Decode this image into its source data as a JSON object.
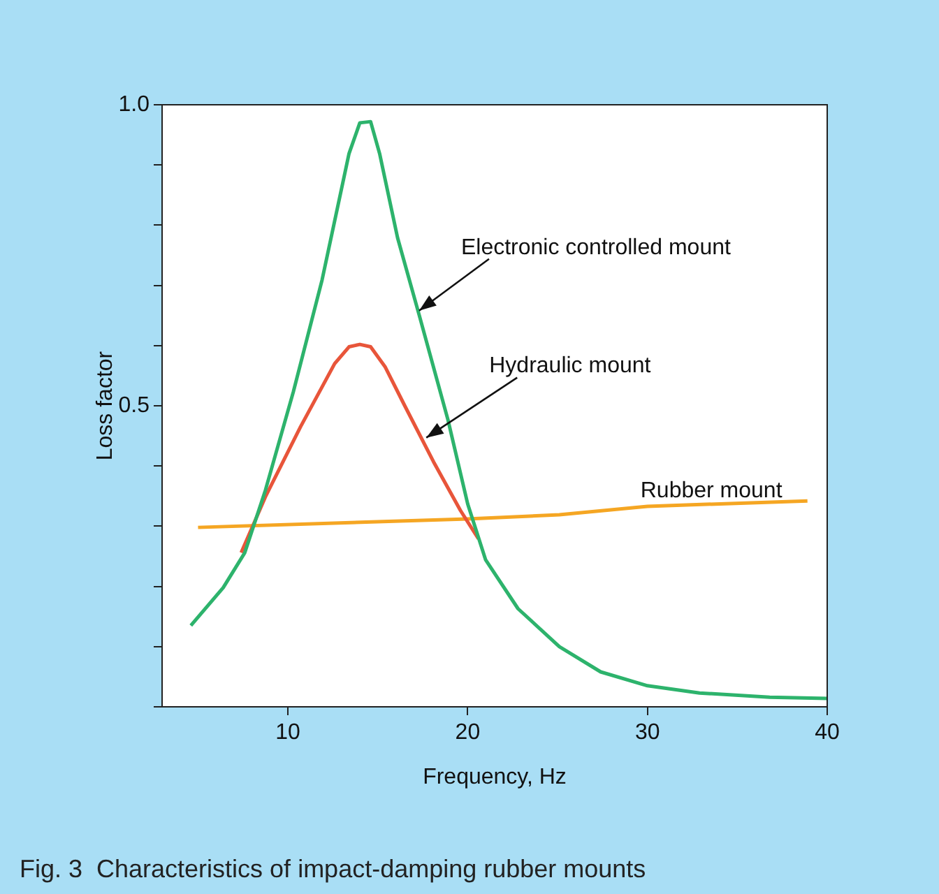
{
  "chart_data": {
    "type": "line",
    "xlabel": "Frequency, Hz",
    "ylabel": "Loss factor",
    "xlim": [
      3,
      40
    ],
    "xticks": [
      10,
      20,
      30,
      40
    ],
    "ylim": [
      0,
      1
    ],
    "yticks": [
      {
        "value": 0,
        "label": null
      },
      {
        "value": 0.1,
        "label": null
      },
      {
        "value": 0.2,
        "label": null
      },
      {
        "value": 0.3,
        "label": null
      },
      {
        "value": 0.4,
        "label": null
      },
      {
        "value": 0.5,
        "label": "0.5"
      },
      {
        "value": 0.6,
        "label": null
      },
      {
        "value": 0.7,
        "label": null
      },
      {
        "value": 0.8,
        "label": null
      },
      {
        "value": 0.9,
        "label": null
      },
      {
        "value": 1,
        "label": "1.0"
      }
    ],
    "grid": false,
    "legend": false,
    "marker": "none",
    "line_style": "solid",
    "series": [
      {
        "color": "#2db36c",
        "x": [
          4.6,
          6.4,
          7.6,
          8.75,
          10.3,
          11.9,
          13.4,
          14.0,
          14.6,
          15.1,
          16.1,
          17.3,
          18.9,
          20.0,
          21.0,
          22.8,
          25.1,
          27.4,
          30,
          32.9,
          36.8,
          40
        ],
        "values": [
          0.135,
          0.198,
          0.256,
          0.36,
          0.523,
          0.709,
          0.919,
          0.97,
          0.972,
          0.919,
          0.779,
          0.651,
          0.477,
          0.337,
          0.244,
          0.163,
          0.1,
          0.058,
          0.035,
          0.023,
          0.016,
          0.014
        ]
      },
      {
        "color": "#e8553a",
        "x": [
          7.4,
          8.75,
          10.7,
          12.6,
          13.4,
          14,
          14.6,
          15.4,
          16.5,
          18.1,
          19.6,
          20.6
        ],
        "values": [
          0.256,
          0.349,
          0.465,
          0.57,
          0.598,
          0.602,
          0.598,
          0.565,
          0.5,
          0.407,
          0.326,
          0.279
        ]
      },
      {
        "color": "#f5a623",
        "x": [
          5.0,
          20,
          25.1,
          30,
          38.9
        ],
        "values": [
          0.298,
          0.312,
          0.319,
          0.333,
          0.342
        ]
      }
    ],
    "annotations": [
      {
        "text": "Electronic controlled mount",
        "x": 17.3,
        "y": 0.658
      },
      {
        "text": "Hydraulic mount",
        "x": 17.7,
        "y": 0.447
      },
      {
        "text": "Rubber mount",
        "x": 33.5,
        "y": 0.33
      },
      "Fig. 3  Characteristics of impact-damping rubber mounts"
    ]
  }
}
